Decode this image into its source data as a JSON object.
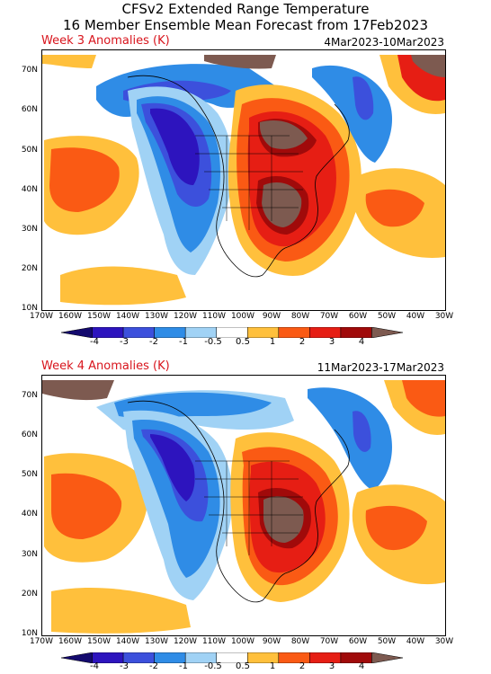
{
  "header": {
    "line1": "CFSv2 Extended Range Temperature",
    "line2": "16 Member Ensemble Mean Forecast from 17Feb2023"
  },
  "maps": [
    {
      "label": "Week 3 Anomalies (K)",
      "dates": "4Mar2023-10Mar2023"
    },
    {
      "label": "Week 4 Anomalies (K)",
      "dates": "11Mar2023-17Mar2023"
    }
  ],
  "lat_labels": [
    "70N",
    "60N",
    "50N",
    "40N",
    "30N",
    "20N",
    "10N"
  ],
  "lon_labels": [
    "170W",
    "160W",
    "150W",
    "140W",
    "130W",
    "120W",
    "110W",
    "100W",
    "90W",
    "80W",
    "70W",
    "60W",
    "50W",
    "40W",
    "30W"
  ],
  "legend": {
    "labels": [
      "-4",
      "-3",
      "-2",
      "-1",
      "-0.5",
      "0.5",
      "1",
      "2",
      "3",
      "4"
    ],
    "colors": [
      "#140a6e",
      "#2d14be",
      "#3c50dc",
      "#2f8ce6",
      "#a0d2f5",
      "#ffffff",
      "#ffc03c",
      "#fa5a14",
      "#e61e14",
      "#a00a0a",
      "#7d5a50"
    ]
  }
}
